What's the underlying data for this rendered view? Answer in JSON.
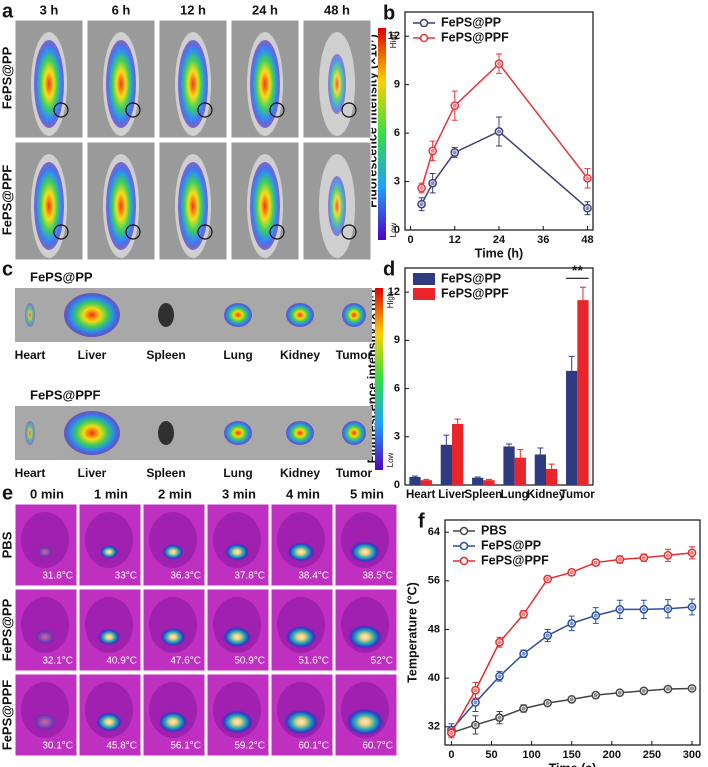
{
  "chart_data": [
    {
      "type": "line",
      "label": "b",
      "xlabel": "Time (h)",
      "ylabel": "Fluorescence intensity (×10⁷)",
      "x": [
        3,
        6,
        12,
        24,
        48
      ],
      "xlim": [
        -1.5,
        49.5
      ],
      "xticks": [
        0,
        12,
        24,
        36,
        48
      ],
      "ylim": [
        0,
        13.5
      ],
      "yticks": [
        0,
        3,
        6,
        9,
        12
      ],
      "legend": "upper left",
      "series": [
        {
          "name": "FePS@PP",
          "color": "#3b3f7c",
          "values": [
            1.6,
            2.9,
            4.8,
            6.1,
            1.35
          ],
          "errors": [
            0.4,
            0.6,
            0.3,
            0.9,
            0.4
          ]
        },
        {
          "name": "FePS@PPF",
          "color": "#e8353a",
          "values": [
            2.6,
            4.9,
            7.7,
            10.3,
            3.2
          ],
          "errors": [
            0.3,
            0.6,
            0.9,
            0.6,
            0.6
          ]
        }
      ]
    },
    {
      "type": "bar",
      "label": "d",
      "ylabel": "Fluorescence intensity (×10⁷)",
      "categories": [
        "Heart",
        "Liver",
        "Spleen",
        "Lung",
        "Kidney",
        "Tumor"
      ],
      "ylim": [
        0,
        13.5
      ],
      "yticks": [
        0,
        3,
        6,
        9,
        12
      ],
      "legend": "upper left",
      "series": [
        {
          "name": "FePS@PP",
          "color": "#2e3b80",
          "values": [
            0.5,
            2.5,
            0.45,
            2.4,
            1.9,
            7.1
          ],
          "errors": [
            0.05,
            0.6,
            0.05,
            0.15,
            0.4,
            0.9
          ]
        },
        {
          "name": "FePS@PPF",
          "color": "#e8252a",
          "values": [
            0.3,
            3.8,
            0.3,
            1.7,
            1.0,
            11.5
          ],
          "errors": [
            0.05,
            0.3,
            0.05,
            0.5,
            0.3,
            0.8
          ]
        }
      ],
      "annotations": [
        {
          "text": "**",
          "x": "Tumor"
        }
      ]
    },
    {
      "type": "line",
      "label": "f",
      "xlabel": "Time (s)",
      "ylabel": "Temperature (°C)",
      "x": [
        0,
        30,
        60,
        90,
        120,
        150,
        180,
        210,
        240,
        270,
        300
      ],
      "xlim": [
        -8,
        310
      ],
      "xticks": [
        0,
        50,
        100,
        150,
        200,
        250,
        300
      ],
      "ylim": [
        29,
        66
      ],
      "yticks": [
        32,
        40,
        48,
        56,
        64
      ],
      "legend": "upper left",
      "series": [
        {
          "name": "PBS",
          "color": "#444444",
          "values": [
            31,
            32.3,
            33.5,
            35.0,
            35.9,
            36.5,
            37.2,
            37.6,
            37.9,
            38.2,
            38.3
          ],
          "errors": [
            0.5,
            1.5,
            1,
            0.6,
            0.4,
            0.3,
            0.3,
            0.3,
            0.3,
            0.3,
            0.3
          ]
        },
        {
          "name": "FePS@PP",
          "color": "#2a4fa0",
          "values": [
            31.5,
            36,
            40.3,
            44,
            47,
            49,
            50.3,
            51.3,
            51.3,
            51.4,
            51.7
          ],
          "errors": [
            1,
            1.5,
            0.8,
            0.6,
            1,
            1.2,
            1.3,
            1.5,
            1.5,
            1.5,
            1.3
          ]
        },
        {
          "name": "FePS@PPF",
          "color": "#e52d2d",
          "values": [
            31,
            38,
            45.9,
            50.5,
            56.3,
            57.4,
            59,
            59.5,
            59.8,
            60.2,
            60.6
          ],
          "errors": [
            0.8,
            1.3,
            0.8,
            0.6,
            0.5,
            0.5,
            0.5,
            0.6,
            0.6,
            1,
            1
          ]
        }
      ]
    }
  ],
  "image_panels": [
    {
      "label": "a",
      "columns": [
        "3 h",
        "6 h",
        "12 h",
        "24 h",
        "48 h"
      ],
      "rows": [
        "FePS@PP",
        "FePS@PPF"
      ],
      "colorbar": [
        "High",
        "Low"
      ]
    },
    {
      "label": "c",
      "groups": [
        {
          "title": "FePS@PP",
          "organs": [
            "Heart",
            "Liver",
            "Spleen",
            "Lung",
            "Kidney",
            "Tumor"
          ]
        },
        {
          "title": "FePS@PPF",
          "organs": [
            "Heart",
            "Liver",
            "Spleen",
            "Lung",
            "Kidney",
            "Tumor"
          ]
        }
      ],
      "colorbar": [
        "High",
        "Low"
      ]
    },
    {
      "label": "e",
      "columns": [
        "0 min",
        "1 min",
        "2 min",
        "3 min",
        "4 min",
        "5 min"
      ],
      "rows": [
        {
          "name": "PBS",
          "temps": [
            "31.8°C",
            "33°C",
            "36.3°C",
            "37.8°C",
            "38.4°C",
            "38.5°C"
          ]
        },
        {
          "name": "FePS@PP",
          "temps": [
            "32.1°C",
            "40.9°C",
            "47.6°C",
            "50.9°C",
            "51.6°C",
            "52°C"
          ]
        },
        {
          "name": "FePS@PPF",
          "temps": [
            "30.1°C",
            "45.8°C",
            "56.1°C",
            "59.2°C",
            "60.1°C",
            "60.7°C"
          ]
        }
      ]
    }
  ]
}
